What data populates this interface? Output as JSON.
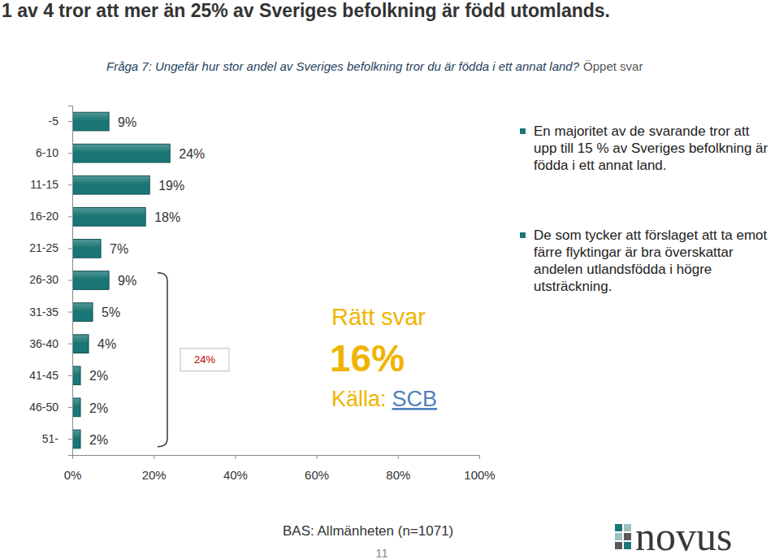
{
  "chart_data": {
    "type": "bar",
    "orientation": "horizontal",
    "title": "1 av 4 tror att mer än 25% av Sveriges befolkning  är född utomlands.",
    "subtitle": "Fråga 7: Ungefär hur stor andel av Sveriges befolkning tror du är födda i ett annat land?",
    "categories": [
      "-5",
      "6-10",
      "11-15",
      "16-20",
      "21-25",
      "26-30",
      "31-35",
      "36-40",
      "41-45",
      "46-50",
      "51-"
    ],
    "values": [
      9,
      24,
      19,
      18,
      7,
      9,
      5,
      4,
      2,
      2,
      2
    ],
    "value_labels": [
      "9%",
      "24%",
      "19%",
      "18%",
      "7%",
      "9%",
      "5%",
      "4%",
      "2%",
      "2%",
      "2%"
    ],
    "data_labels": true,
    "color": "#1b7676",
    "xlim": [
      0,
      100
    ],
    "xticks": [
      {
        "value": 0,
        "label": "0%"
      },
      {
        "value": 20,
        "label": "20%"
      },
      {
        "value": 40,
        "label": "40%"
      },
      {
        "value": 60,
        "label": "60%"
      },
      {
        "value": 80,
        "label": "80%"
      },
      {
        "value": 100,
        "label": "100%"
      }
    ],
    "annotations": [
      "Öppet svar",
      "24%",
      "Rätt svar",
      "16%",
      "Källa:",
      "SCB",
      "En majoritet av de svarande tror att upp till 15 % av Sveriges befolkning är födda i ett annat land.",
      "De som tycker att förslaget att ta emot färre flyktingar är bra överskattar andelen utlandsfödda i högre utsträckning.",
      "BAS: Allmänheten (n=1071)",
      "11",
      "novus"
    ]
  }
}
